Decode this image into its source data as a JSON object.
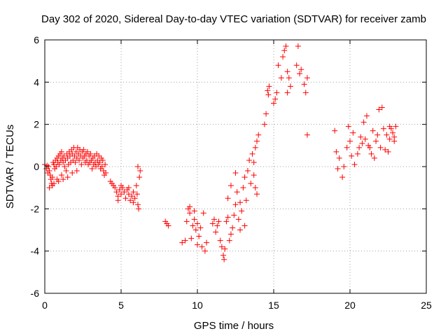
{
  "chart_data": {
    "type": "scatter",
    "title": "Day 302 of 2020, Sidereal Day-to-day VTEC variation (SDTVAR) for receiver zamb",
    "xlabel": "GPS time / hours",
    "ylabel": "SDTVAR / TECUs",
    "xlim": [
      0,
      25
    ],
    "ylim": [
      -6,
      6
    ],
    "xticks": [
      0,
      5,
      10,
      15,
      20,
      25
    ],
    "yticks": [
      -6,
      -4,
      -2,
      0,
      2,
      4,
      6
    ],
    "grid": true,
    "marker": "+",
    "color": "#ff0000",
    "series": [
      {
        "name": "SDTVAR",
        "points": [
          [
            0.0,
            0.1
          ],
          [
            0.1,
            -0.1
          ],
          [
            0.15,
            0.05
          ],
          [
            0.2,
            -0.3
          ],
          [
            0.25,
            0.0
          ],
          [
            0.3,
            -0.2
          ],
          [
            0.35,
            -0.4
          ],
          [
            0.4,
            -0.6
          ],
          [
            0.45,
            -0.8
          ],
          [
            0.5,
            -0.9
          ],
          [
            0.55,
            0.2
          ],
          [
            0.6,
            0.1
          ],
          [
            0.65,
            -0.1
          ],
          [
            0.7,
            0.3
          ],
          [
            0.75,
            0.0
          ],
          [
            0.8,
            0.4
          ],
          [
            0.85,
            0.2
          ],
          [
            0.9,
            0.5
          ],
          [
            0.95,
            0.1
          ],
          [
            1.0,
            0.6
          ],
          [
            1.05,
            0.3
          ],
          [
            1.1,
            0.7
          ],
          [
            1.15,
            0.4
          ],
          [
            1.2,
            0.2
          ],
          [
            1.25,
            0.5
          ],
          [
            1.3,
            0.0
          ],
          [
            1.35,
            0.3
          ],
          [
            1.4,
            -0.2
          ],
          [
            1.45,
            0.6
          ],
          [
            1.5,
            0.4
          ],
          [
            1.55,
            0.1
          ],
          [
            1.6,
            0.7
          ],
          [
            1.65,
            0.5
          ],
          [
            1.7,
            0.2
          ],
          [
            1.75,
            0.8
          ],
          [
            1.8,
            0.6
          ],
          [
            1.85,
            0.3
          ],
          [
            1.9,
            0.9
          ],
          [
            1.95,
            0.5
          ],
          [
            2.0,
            0.2
          ],
          [
            2.05,
            0.7
          ],
          [
            2.1,
            0.4
          ],
          [
            2.15,
            0.9
          ],
          [
            2.2,
            0.6
          ],
          [
            2.25,
            0.3
          ],
          [
            2.3,
            0.8
          ],
          [
            2.35,
            0.5
          ],
          [
            2.4,
            0.1
          ],
          [
            2.45,
            0.7
          ],
          [
            2.5,
            0.4
          ],
          [
            2.55,
            0.8
          ],
          [
            2.6,
            0.5
          ],
          [
            2.65,
            0.2
          ],
          [
            2.7,
            0.6
          ],
          [
            2.75,
            0.3
          ],
          [
            2.8,
            0.7
          ],
          [
            2.85,
            0.1
          ],
          [
            2.9,
            0.5
          ],
          [
            2.95,
            0.2
          ],
          [
            3.0,
            0.6
          ],
          [
            3.05,
            0.3
          ],
          [
            3.1,
            -0.1
          ],
          [
            3.15,
            0.4
          ],
          [
            3.2,
            0.1
          ],
          [
            3.25,
            0.5
          ],
          [
            3.3,
            0.2
          ],
          [
            3.35,
            0.0
          ],
          [
            3.4,
            0.6
          ],
          [
            3.45,
            0.3
          ],
          [
            3.5,
            0.1
          ],
          [
            3.55,
            0.5
          ],
          [
            3.6,
            0.2
          ],
          [
            3.65,
            -0.1
          ],
          [
            3.7,
            0.4
          ],
          [
            3.75,
            0.0
          ],
          [
            3.8,
            0.3
          ],
          [
            3.85,
            -0.2
          ],
          [
            3.9,
            -0.4
          ],
          [
            3.95,
            0.1
          ],
          [
            4.0,
            -0.3
          ],
          [
            0.3,
            -1.0
          ],
          [
            0.6,
            -0.8
          ],
          [
            0.9,
            -0.7
          ],
          [
            1.2,
            -0.6
          ],
          [
            1.5,
            -0.5
          ],
          [
            1.8,
            -0.3
          ],
          [
            2.1,
            -0.2
          ],
          [
            0.5,
            -0.5
          ],
          [
            0.8,
            -0.6
          ],
          [
            1.1,
            -0.4
          ],
          [
            4.3,
            -0.7
          ],
          [
            4.4,
            -0.8
          ],
          [
            4.5,
            -0.9
          ],
          [
            4.6,
            -1.0
          ],
          [
            4.7,
            -1.2
          ],
          [
            4.8,
            -1.4
          ],
          [
            4.9,
            -1.1
          ],
          [
            5.0,
            -1.3
          ],
          [
            5.1,
            -1.0
          ],
          [
            5.2,
            -1.2
          ],
          [
            5.3,
            -1.5
          ],
          [
            5.4,
            -1.1
          ],
          [
            5.5,
            -1.3
          ],
          [
            5.6,
            -1.6
          ],
          [
            5.7,
            -1.4
          ],
          [
            5.8,
            -1.2
          ],
          [
            5.9,
            -1.5
          ],
          [
            6.0,
            -0.9
          ],
          [
            6.05,
            -1.3
          ],
          [
            6.1,
            -1.8
          ],
          [
            6.15,
            -2.0
          ],
          [
            6.2,
            -0.5
          ],
          [
            6.25,
            -0.2
          ],
          [
            6.1,
            0.0
          ],
          [
            4.8,
            -1.6
          ],
          [
            5.0,
            -0.9
          ],
          [
            5.5,
            -1.0
          ],
          [
            5.8,
            -1.7
          ],
          [
            7.9,
            -2.6
          ],
          [
            8.1,
            -2.8
          ],
          [
            8.0,
            -2.7
          ],
          [
            9.0,
            -3.6
          ],
          [
            9.2,
            -3.5
          ],
          [
            9.3,
            -2.6
          ],
          [
            9.4,
            -2.0
          ],
          [
            9.5,
            -2.2
          ],
          [
            9.6,
            -3.4
          ],
          [
            9.7,
            -2.8
          ],
          [
            9.8,
            -2.1
          ],
          [
            9.9,
            -3.0
          ],
          [
            10.0,
            -3.7
          ],
          [
            10.1,
            -3.3
          ],
          [
            10.2,
            -2.9
          ],
          [
            10.3,
            -3.8
          ],
          [
            10.4,
            -2.2
          ],
          [
            10.5,
            -4.0
          ],
          [
            10.6,
            -3.6
          ],
          [
            9.5,
            -1.9
          ],
          [
            9.8,
            -2.5
          ],
          [
            10.0,
            -2.7
          ],
          [
            11.0,
            -2.7
          ],
          [
            11.1,
            -2.5
          ],
          [
            11.2,
            -3.1
          ],
          [
            11.3,
            -2.8
          ],
          [
            11.4,
            -2.6
          ],
          [
            11.5,
            -3.5
          ],
          [
            11.6,
            -3.8
          ],
          [
            11.7,
            -4.2
          ],
          [
            11.75,
            -4.4
          ],
          [
            11.8,
            -3.9
          ],
          [
            11.9,
            -2.6
          ],
          [
            12.0,
            -2.4
          ],
          [
            12.1,
            -3.5
          ],
          [
            12.2,
            -3.2
          ],
          [
            12.3,
            -2.9
          ],
          [
            12.4,
            -2.3
          ],
          [
            12.5,
            -1.8
          ],
          [
            12.6,
            -1.2
          ],
          [
            12.7,
            -2.5
          ],
          [
            12.8,
            -3.0
          ],
          [
            12.9,
            -2.1
          ],
          [
            13.0,
            -1.0
          ],
          [
            13.1,
            -0.5
          ],
          [
            13.2,
            -1.6
          ],
          [
            13.3,
            -0.2
          ],
          [
            13.4,
            0.3
          ],
          [
            13.5,
            -0.8
          ],
          [
            13.6,
            0.6
          ],
          [
            13.7,
            0.2
          ],
          [
            13.8,
            0.9
          ],
          [
            13.9,
            1.2
          ],
          [
            14.0,
            1.5
          ],
          [
            13.7,
            -0.4
          ],
          [
            13.8,
            -1.0
          ],
          [
            13.9,
            -1.3
          ],
          [
            12.0,
            -1.5
          ],
          [
            12.2,
            -0.9
          ],
          [
            12.5,
            -0.3
          ],
          [
            13.1,
            -2.8
          ],
          [
            12.8,
            -1.7
          ],
          [
            14.4,
            2.0
          ],
          [
            14.5,
            2.5
          ],
          [
            14.6,
            3.6
          ],
          [
            14.7,
            3.8
          ],
          [
            14.65,
            3.4
          ],
          [
            15.0,
            3.0
          ],
          [
            15.1,
            3.2
          ],
          [
            15.2,
            3.5
          ],
          [
            15.3,
            4.8
          ],
          [
            15.5,
            4.2
          ],
          [
            15.6,
            5.2
          ],
          [
            15.7,
            5.5
          ],
          [
            15.8,
            5.7
          ],
          [
            15.9,
            4.5
          ],
          [
            16.0,
            4.2
          ],
          [
            16.1,
            3.8
          ],
          [
            15.9,
            3.5
          ],
          [
            16.5,
            4.8
          ],
          [
            16.6,
            5.7
          ],
          [
            16.7,
            4.4
          ],
          [
            16.8,
            4.6
          ],
          [
            17.0,
            3.9
          ],
          [
            17.1,
            3.5
          ],
          [
            17.2,
            4.2
          ],
          [
            17.2,
            1.5
          ],
          [
            19.0,
            1.7
          ],
          [
            19.1,
            0.7
          ],
          [
            19.2,
            -0.1
          ],
          [
            19.3,
            0.4
          ],
          [
            19.5,
            -0.5
          ],
          [
            19.6,
            0.0
          ],
          [
            19.8,
            0.9
          ],
          [
            19.9,
            1.9
          ],
          [
            20.0,
            1.2
          ],
          [
            20.1,
            0.5
          ],
          [
            20.2,
            1.6
          ],
          [
            20.3,
            0.1
          ],
          [
            20.5,
            0.6
          ],
          [
            20.6,
            0.9
          ],
          [
            20.7,
            1.4
          ],
          [
            20.8,
            1.1
          ],
          [
            20.9,
            2.1
          ],
          [
            21.0,
            1.3
          ],
          [
            21.1,
            2.4
          ],
          [
            21.2,
            1.0
          ],
          [
            21.3,
            0.9
          ],
          [
            21.4,
            0.6
          ],
          [
            21.5,
            1.7
          ],
          [
            21.6,
            0.4
          ],
          [
            21.7,
            1.2
          ],
          [
            21.8,
            1.5
          ],
          [
            21.9,
            2.7
          ],
          [
            22.0,
            0.9
          ],
          [
            22.1,
            2.8
          ],
          [
            22.2,
            1.8
          ],
          [
            22.3,
            0.8
          ],
          [
            22.4,
            1.5
          ],
          [
            22.5,
            0.7
          ],
          [
            22.6,
            1.3
          ],
          [
            22.7,
            1.8
          ],
          [
            22.8,
            1.6
          ],
          [
            22.9,
            1.2
          ],
          [
            23.0,
            1.9
          ],
          [
            22.9,
            1.4
          ],
          [
            22.6,
            1.9
          ]
        ]
      }
    ]
  }
}
